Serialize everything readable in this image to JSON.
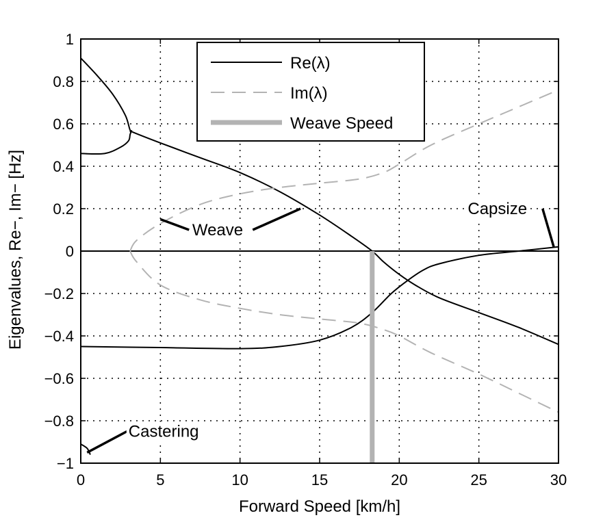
{
  "chart_data": {
    "type": "line",
    "xlabel": "Forward Speed [km/h]",
    "ylabel": "Eigenvalues, Re−, Im− [Hz]",
    "xlim": [
      0,
      30
    ],
    "ylim": [
      -1,
      1
    ],
    "xticks": [
      0,
      5,
      10,
      15,
      20,
      25,
      30
    ],
    "xtick_labels": [
      "0",
      "5",
      "10",
      "15",
      "20",
      "25",
      "30"
    ],
    "yticks": [
      -1,
      -0.8,
      -0.6,
      -0.4,
      -0.2,
      0,
      0.2,
      0.4,
      0.6,
      0.8,
      1
    ],
    "ytick_labels": [
      "−1",
      "−0.8",
      "−0.6",
      "−0.4",
      "−0.2",
      "0",
      "0.2",
      "0.4",
      "0.6",
      "0.8",
      "1"
    ],
    "grid": true,
    "legend_position": "top-center",
    "legend": [
      {
        "label": "Re(λ)",
        "style": "solid",
        "color": "#000000"
      },
      {
        "label": "Im(λ)",
        "style": "dashed",
        "color": "#b3b3b3"
      },
      {
        "label": "Weave Speed",
        "style": "thick",
        "color": "#b3b3b3"
      }
    ],
    "series": [
      {
        "name": "Re(λ)",
        "style": "solid",
        "color": "#000000",
        "points": [
          [
            0,
            0.91
          ],
          [
            1,
            0.83
          ],
          [
            2,
            0.74
          ],
          [
            2.8,
            0.64
          ],
          [
            3.1,
            0.57
          ],
          [
            3.3,
            0.56
          ],
          [
            5,
            0.51
          ],
          [
            7.5,
            0.44
          ],
          [
            10,
            0.37
          ],
          [
            12.5,
            0.28
          ],
          [
            15,
            0.17
          ],
          [
            17,
            0.07
          ],
          [
            18.3,
            0.0
          ],
          [
            19,
            -0.05
          ],
          [
            20,
            -0.11
          ],
          [
            21,
            -0.16
          ],
          [
            22.5,
            -0.22
          ],
          [
            25,
            -0.29
          ],
          [
            27.5,
            -0.36
          ],
          [
            30,
            -0.44
          ]
        ]
      },
      {
        "name": "Re(λ)",
        "style": "solid",
        "color": "#000000",
        "points": [
          [
            0,
            0.46
          ],
          [
            1.5,
            0.46
          ],
          [
            2.5,
            0.49
          ],
          [
            3.0,
            0.52
          ],
          [
            3.1,
            0.55
          ],
          [
            3.2,
            0.57
          ]
        ]
      },
      {
        "name": "Re(λ)",
        "style": "solid",
        "color": "#000000",
        "points": [
          [
            0,
            -0.45
          ],
          [
            5,
            -0.455
          ],
          [
            10,
            -0.46
          ],
          [
            12.5,
            -0.45
          ],
          [
            15,
            -0.42
          ],
          [
            17,
            -0.36
          ],
          [
            18.3,
            -0.29
          ],
          [
            19.5,
            -0.2
          ],
          [
            20.5,
            -0.14
          ],
          [
            21.5,
            -0.09
          ],
          [
            22.5,
            -0.06
          ],
          [
            25,
            -0.02
          ],
          [
            27.5,
            0.0
          ],
          [
            30,
            0.02
          ]
        ]
      },
      {
        "name": "Re(λ)",
        "style": "solid",
        "color": "#000000",
        "points": [
          [
            0,
            0
          ],
          [
            30,
            0
          ]
        ]
      },
      {
        "name": "Re(λ)",
        "style": "solid",
        "color": "#000000",
        "points": [
          [
            0,
            -0.91
          ],
          [
            0.4,
            -0.93
          ],
          [
            0.6,
            -0.96
          ]
        ]
      },
      {
        "name": "Im(λ)",
        "style": "dashed",
        "color": "#b3b3b3",
        "points": [
          [
            3.1,
            0.0
          ],
          [
            3.5,
            0.05
          ],
          [
            5,
            0.13
          ],
          [
            7.5,
            0.22
          ],
          [
            10,
            0.27
          ],
          [
            12.5,
            0.3
          ],
          [
            15,
            0.32
          ],
          [
            17.5,
            0.34
          ],
          [
            19,
            0.37
          ],
          [
            20,
            0.41
          ],
          [
            22,
            0.5
          ],
          [
            25,
            0.6
          ],
          [
            27.5,
            0.68
          ],
          [
            30,
            0.76
          ]
        ]
      },
      {
        "name": "Im(λ)",
        "style": "dashed",
        "color": "#b3b3b3",
        "points": [
          [
            3.1,
            0.0
          ],
          [
            3.5,
            -0.05
          ],
          [
            5,
            -0.16
          ],
          [
            7.5,
            -0.23
          ],
          [
            10,
            -0.27
          ],
          [
            12.5,
            -0.3
          ],
          [
            15,
            -0.32
          ],
          [
            17.5,
            -0.34
          ],
          [
            19,
            -0.37
          ],
          [
            20,
            -0.4
          ],
          [
            22,
            -0.48
          ],
          [
            25,
            -0.58
          ],
          [
            27.5,
            -0.67
          ],
          [
            30,
            -0.76
          ]
        ]
      },
      {
        "name": "Weave Speed",
        "style": "thick",
        "color": "#b3b3b3",
        "points": [
          [
            18.3,
            -1
          ],
          [
            18.3,
            0.0
          ]
        ]
      }
    ],
    "annotations": [
      {
        "text": "Weave",
        "text_at": [
          7.0,
          0.1
        ],
        "pointers": [
          [
            [
              6.8,
              0.1
            ],
            [
              5.0,
              0.15
            ]
          ],
          [
            [
              10.8,
              0.1
            ],
            [
              13.8,
              0.2
            ]
          ]
        ]
      },
      {
        "text": "Capsize",
        "text_at": [
          24.3,
          0.2
        ],
        "pointers": [
          [
            [
              29.0,
              0.2
            ],
            [
              29.7,
              0.02
            ]
          ]
        ]
      },
      {
        "text": "Castering",
        "text_at": [
          3.0,
          -0.85
        ],
        "pointers": [
          [
            [
              2.9,
              -0.85
            ],
            [
              0.4,
              -0.95
            ]
          ]
        ]
      }
    ]
  }
}
